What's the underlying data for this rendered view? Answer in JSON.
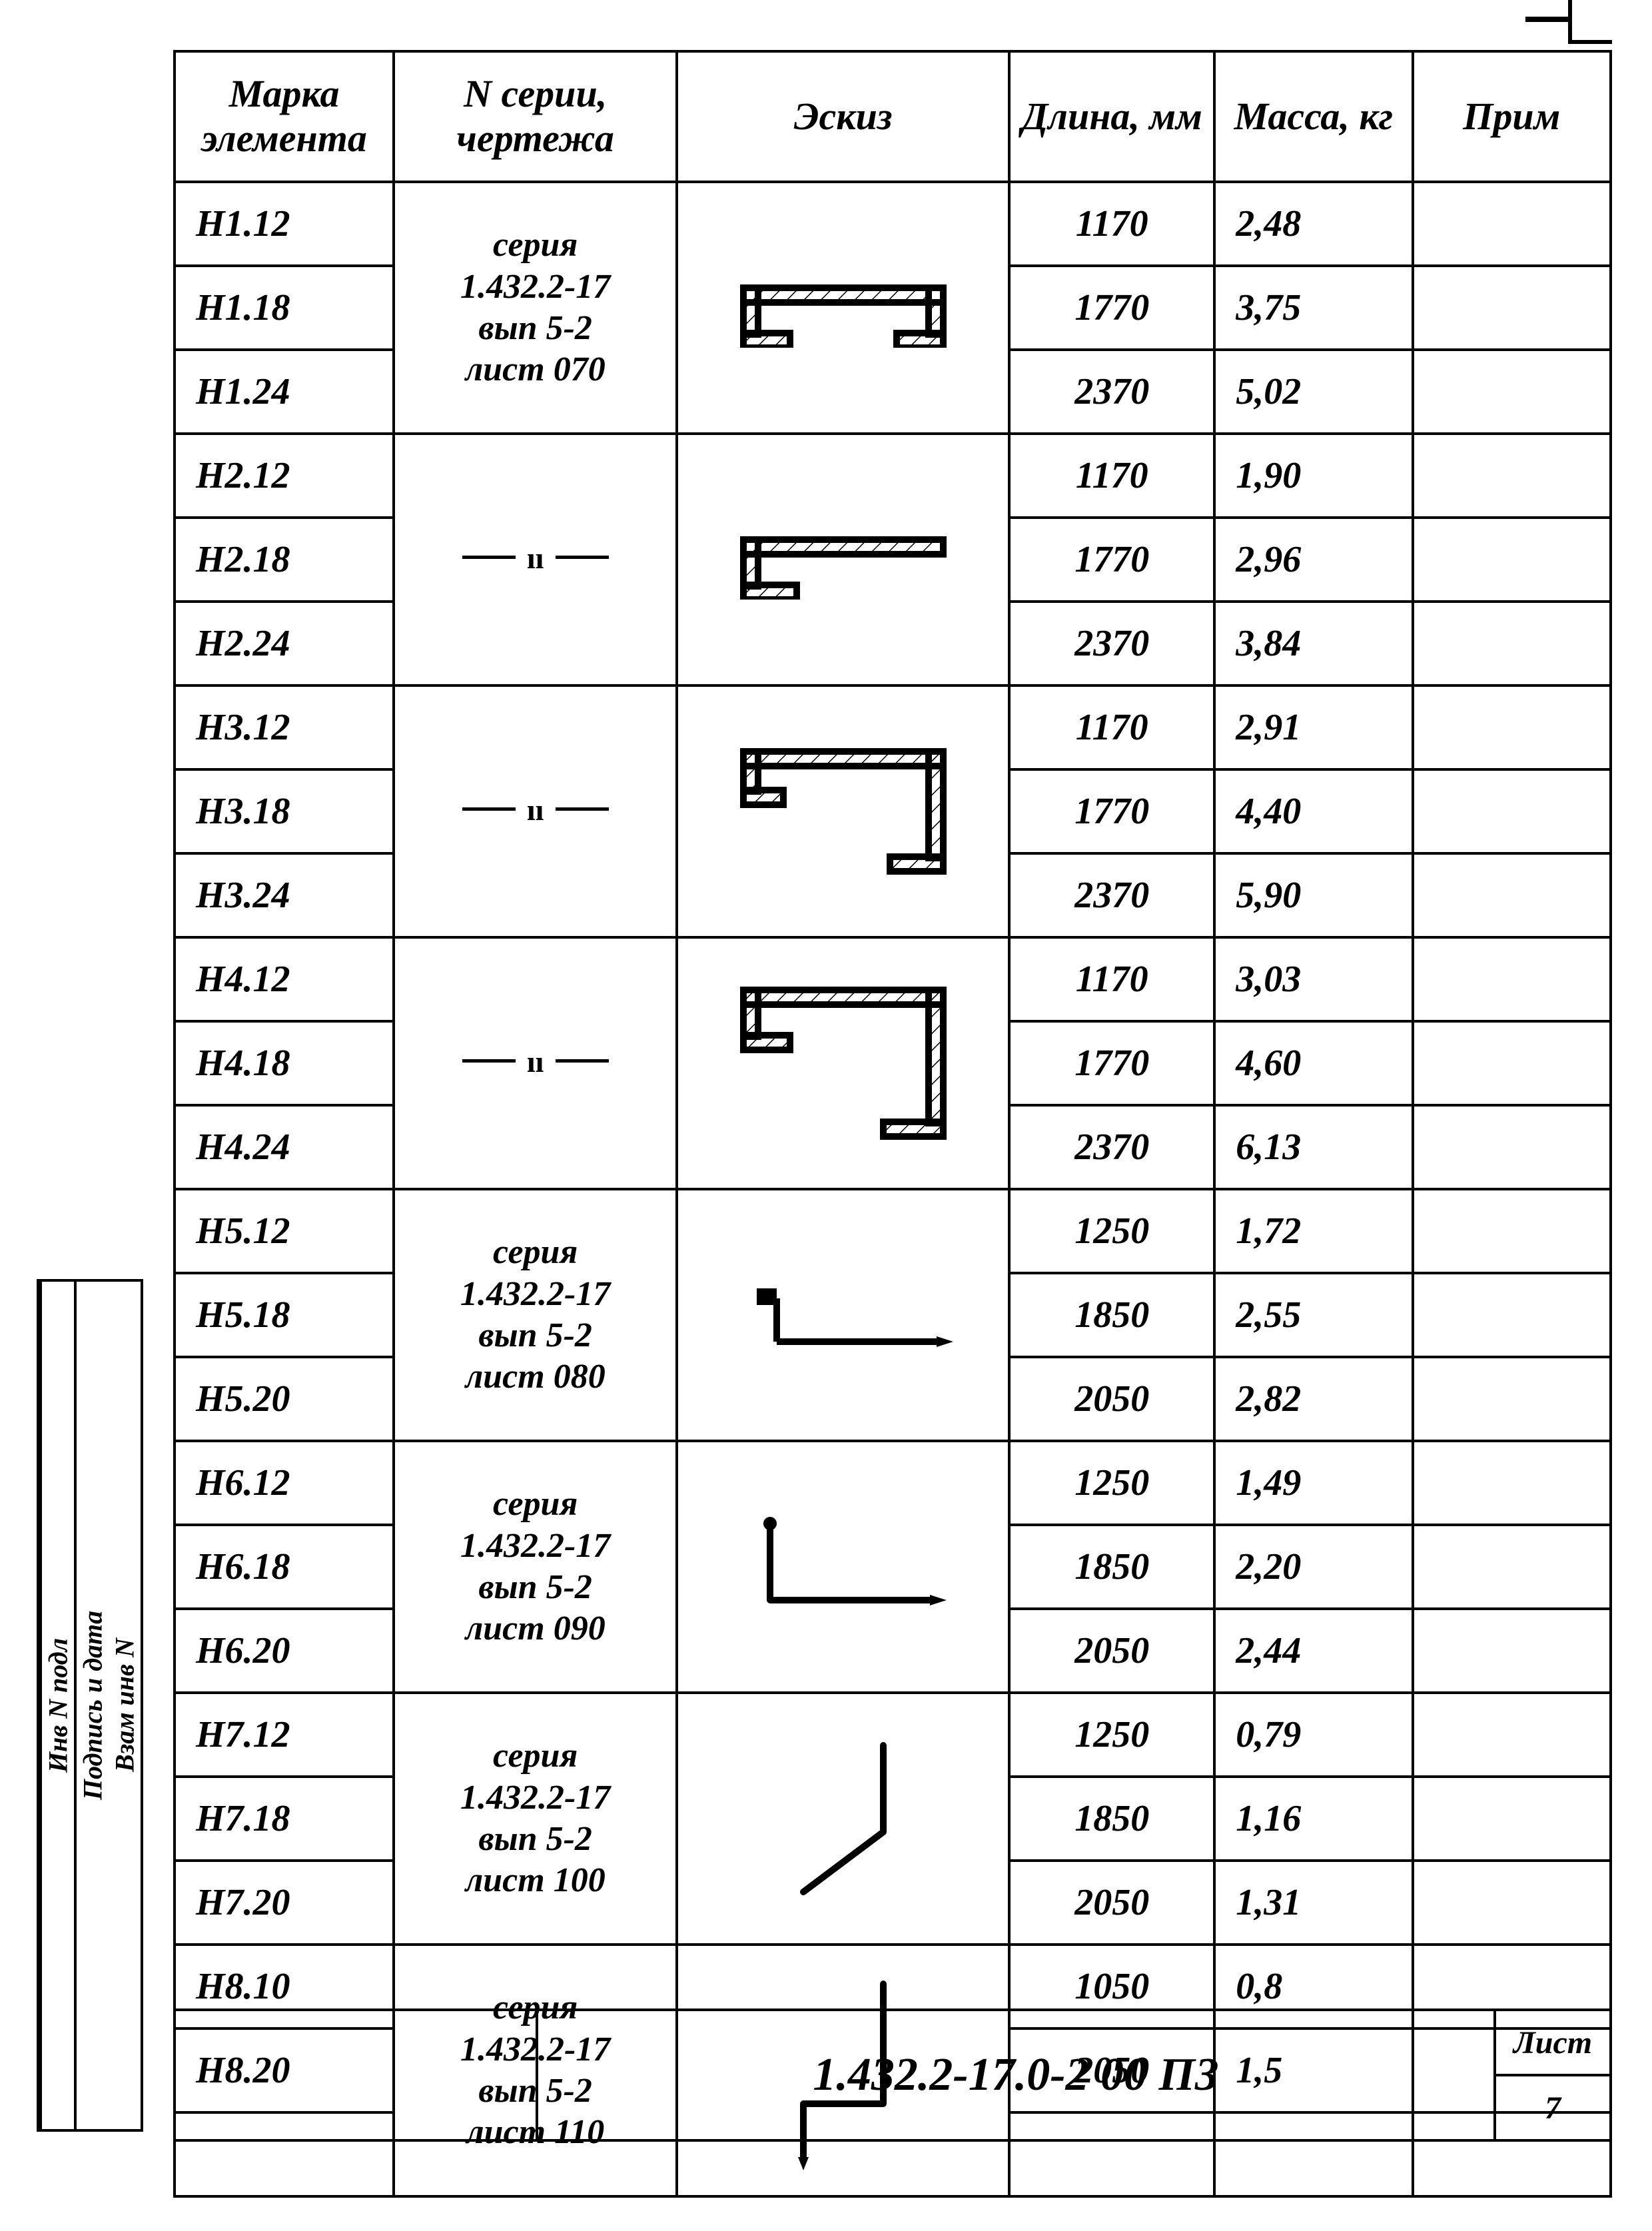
{
  "columns": {
    "mark": "Марка элемента",
    "series": "N серии, чертежа",
    "sketch": "Эскиз",
    "length": "Длина, мм",
    "mass": "Масса, кг",
    "note": "Прим"
  },
  "groups": [
    {
      "series_lines": [
        "серия",
        "1.432.2-17",
        "вып 5-2",
        "лист 070"
      ],
      "ditto": false,
      "sketch": "shape1",
      "rows": [
        {
          "mark": "Н1.12",
          "length": "1170",
          "mass": "2,48"
        },
        {
          "mark": "Н1.18",
          "length": "1770",
          "mass": "3,75"
        },
        {
          "mark": "Н1.24",
          "length": "2370",
          "mass": "5,02"
        }
      ]
    },
    {
      "series_lines": [],
      "ditto": true,
      "sketch": "shape2",
      "rows": [
        {
          "mark": "Н2.12",
          "length": "1170",
          "mass": "1,90"
        },
        {
          "mark": "Н2.18",
          "length": "1770",
          "mass": "2,96"
        },
        {
          "mark": "Н2.24",
          "length": "2370",
          "mass": "3,84"
        }
      ]
    },
    {
      "series_lines": [],
      "ditto": true,
      "sketch": "shape3",
      "rows": [
        {
          "mark": "Н3.12",
          "length": "1170",
          "mass": "2,91"
        },
        {
          "mark": "Н3.18",
          "length": "1770",
          "mass": "4,40"
        },
        {
          "mark": "Н3.24",
          "length": "2370",
          "mass": "5,90"
        }
      ]
    },
    {
      "series_lines": [],
      "ditto": true,
      "sketch": "shape4",
      "rows": [
        {
          "mark": "Н4.12",
          "length": "1170",
          "mass": "3,03"
        },
        {
          "mark": "Н4.18",
          "length": "1770",
          "mass": "4,60"
        },
        {
          "mark": "Н4.24",
          "length": "2370",
          "mass": "6,13"
        }
      ]
    },
    {
      "series_lines": [
        "серия",
        "1.432.2-17",
        "вып 5-2",
        "лист 080"
      ],
      "ditto": false,
      "sketch": "shape5",
      "rows": [
        {
          "mark": "Н5.12",
          "length": "1250",
          "mass": "1,72"
        },
        {
          "mark": "Н5.18",
          "length": "1850",
          "mass": "2,55"
        },
        {
          "mark": "Н5.20",
          "length": "2050",
          "mass": "2,82"
        }
      ]
    },
    {
      "series_lines": [
        "серия",
        "1.432.2-17",
        "вып 5-2",
        "лист 090"
      ],
      "ditto": false,
      "sketch": "shape6",
      "rows": [
        {
          "mark": "Н6.12",
          "length": "1250",
          "mass": "1,49"
        },
        {
          "mark": "Н6.18",
          "length": "1850",
          "mass": "2,20"
        },
        {
          "mark": "Н6.20",
          "length": "2050",
          "mass": "2,44"
        }
      ]
    },
    {
      "series_lines": [
        "серия",
        "1.432.2-17",
        "вып 5-2",
        "лист 100"
      ],
      "ditto": false,
      "sketch": "shape7",
      "rows": [
        {
          "mark": "Н7.12",
          "length": "1250",
          "mass": "0,79"
        },
        {
          "mark": "Н7.18",
          "length": "1850",
          "mass": "1,16"
        },
        {
          "mark": "Н7.20",
          "length": "2050",
          "mass": "1,31"
        }
      ]
    },
    {
      "series_lines": [
        "серия",
        "1.432.2-17",
        "вып 5-2",
        "лист 110"
      ],
      "ditto": false,
      "sketch": "shape8",
      "rows": [
        {
          "mark": "Н8.10",
          "length": "1050",
          "mass": "0,8"
        },
        {
          "mark": "Н8.20",
          "length": "2050",
          "mass": "1,5"
        },
        {
          "mark": "",
          "length": "",
          "mass": ""
        }
      ]
    }
  ],
  "footer": {
    "doc_number": "1.432.2-17.0-2 00 ПЗ",
    "sheet_label": "Лист",
    "sheet_number": "7"
  },
  "side_labels": [
    "Инв N подл",
    "Подпись и дата",
    "Взам инв N"
  ],
  "svg": {
    "stroke": "#000000",
    "stroke_width": 10,
    "hatch_spacing": 18
  }
}
